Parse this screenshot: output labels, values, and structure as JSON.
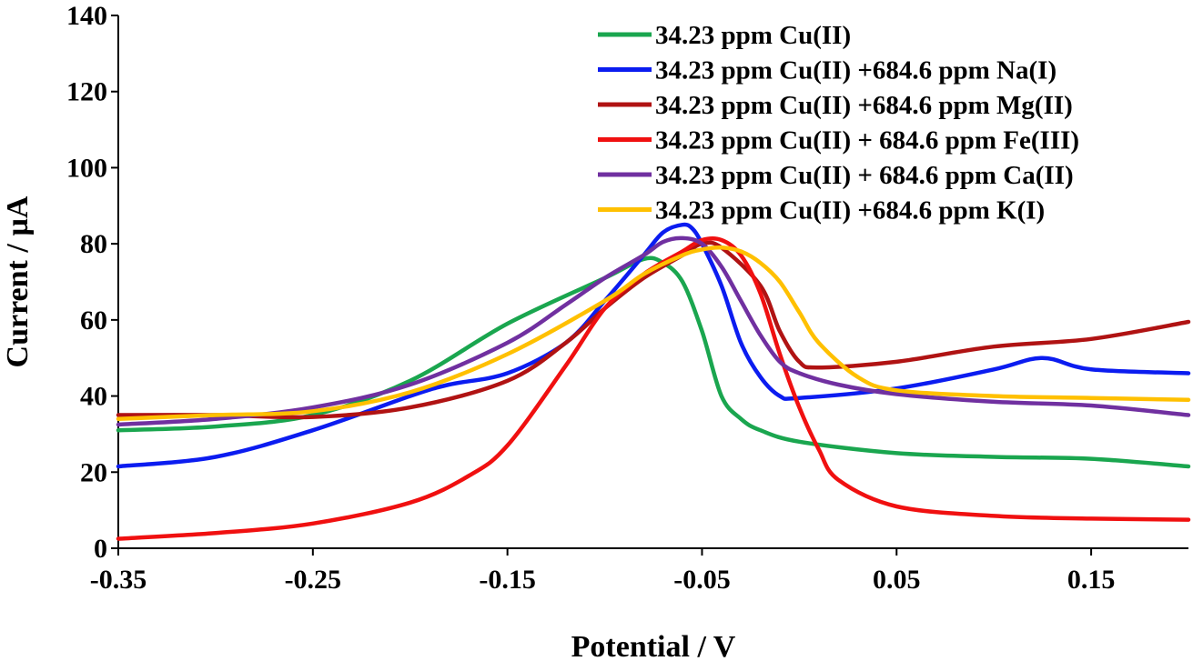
{
  "chart_data": {
    "type": "line",
    "title": "",
    "xlabel": "Potential / V",
    "ylabel": "Current / µA",
    "xlim": [
      -0.35,
      0.2
    ],
    "ylim": [
      0,
      140
    ],
    "x_ticks": [
      -0.35,
      -0.25,
      -0.15,
      -0.05,
      0.05,
      0.15
    ],
    "x_tick_labels": [
      "-0.35",
      "-0.25",
      "-0.15",
      "-0.05",
      "0.05",
      "0.15"
    ],
    "y_ticks": [
      0,
      20,
      40,
      60,
      80,
      100,
      120,
      140
    ],
    "y_tick_labels": [
      "0",
      "20",
      "40",
      "60",
      "80",
      "100",
      "120",
      "140"
    ],
    "grid": false,
    "legend_position": "top-right",
    "series": [
      {
        "name": "34.23 ppm Cu(II)",
        "color": "#1aa64f",
        "x": [
          -0.35,
          -0.3,
          -0.25,
          -0.2,
          -0.15,
          -0.1,
          -0.08,
          -0.07,
          -0.06,
          -0.05,
          -0.04,
          -0.03,
          -0.02,
          0.0,
          0.05,
          0.1,
          0.15,
          0.2
        ],
        "y": [
          31,
          32,
          35,
          44,
          59,
          71,
          76,
          75,
          70,
          57,
          40,
          34,
          31,
          28,
          25,
          24,
          23.5,
          21.5
        ]
      },
      {
        "name": "34.23 ppm Cu(II) +684.6 ppm Na(I)",
        "color": "#0b1cf0",
        "x": [
          -0.35,
          -0.3,
          -0.25,
          -0.2,
          -0.18,
          -0.15,
          -0.12,
          -0.1,
          -0.08,
          -0.07,
          -0.06,
          -0.055,
          -0.05,
          -0.04,
          -0.03,
          -0.02,
          -0.01,
          0.0,
          0.05,
          0.1,
          0.125,
          0.15,
          0.2
        ],
        "y": [
          21.5,
          24,
          31,
          40,
          43,
          46,
          54,
          65,
          77,
          83,
          85,
          84,
          80,
          69,
          54,
          45,
          40,
          39.5,
          42,
          47,
          50,
          47,
          46
        ]
      },
      {
        "name": "34.23 ppm Cu(II) +684.6 ppm Mg(II)",
        "color": "#b01313",
        "x": [
          -0.35,
          -0.3,
          -0.25,
          -0.2,
          -0.15,
          -0.12,
          -0.1,
          -0.08,
          -0.06,
          -0.05,
          -0.04,
          -0.02,
          -0.01,
          0.0,
          0.01,
          0.05,
          0.1,
          0.15,
          0.2
        ],
        "y": [
          35,
          35,
          34.5,
          37,
          44,
          54,
          63,
          71,
          77,
          80,
          79,
          69,
          57,
          49,
          47.5,
          49,
          53,
          55,
          59.5
        ]
      },
      {
        "name": "34.23 ppm Cu(II) + 684.6 ppm Fe(III)",
        "color": "#f01010",
        "x": [
          -0.35,
          -0.3,
          -0.25,
          -0.2,
          -0.17,
          -0.15,
          -0.12,
          -0.1,
          -0.08,
          -0.06,
          -0.05,
          -0.04,
          -0.03,
          -0.02,
          -0.01,
          0.0,
          0.01,
          0.02,
          0.05,
          0.1,
          0.15,
          0.2
        ],
        "y": [
          2.5,
          4,
          6.5,
          12,
          19,
          27,
          48,
          63,
          72,
          78,
          81,
          81,
          77,
          67,
          51,
          37,
          26,
          18,
          11,
          8.5,
          7.8,
          7.5
        ]
      },
      {
        "name": "34.23 ppm Cu(II) + 684.6 ppm Ca(II)",
        "color": "#7030a0",
        "x": [
          -0.35,
          -0.3,
          -0.25,
          -0.2,
          -0.15,
          -0.12,
          -0.1,
          -0.08,
          -0.07,
          -0.06,
          -0.05,
          -0.04,
          -0.03,
          -0.02,
          -0.01,
          0.0,
          0.02,
          0.05,
          0.1,
          0.15,
          0.2
        ],
        "y": [
          32.5,
          34,
          37,
          43,
          54,
          64,
          71,
          77,
          80.5,
          81.5,
          80,
          74,
          65,
          56,
          49,
          46,
          43,
          40.5,
          38.5,
          37.5,
          35
        ]
      },
      {
        "name": "34.23 ppm Cu(II) +684.6 ppm K(I)",
        "color": "#ffc000",
        "x": [
          -0.35,
          -0.3,
          -0.25,
          -0.2,
          -0.15,
          -0.1,
          -0.08,
          -0.06,
          -0.05,
          -0.04,
          -0.03,
          -0.02,
          -0.01,
          0.0,
          0.01,
          0.03,
          0.05,
          0.1,
          0.15,
          0.2
        ],
        "y": [
          34,
          35,
          36,
          41,
          51,
          65,
          72,
          77,
          78.5,
          79,
          78,
          75,
          70,
          62,
          54,
          45,
          41.5,
          40,
          39.5,
          39
        ]
      }
    ]
  }
}
